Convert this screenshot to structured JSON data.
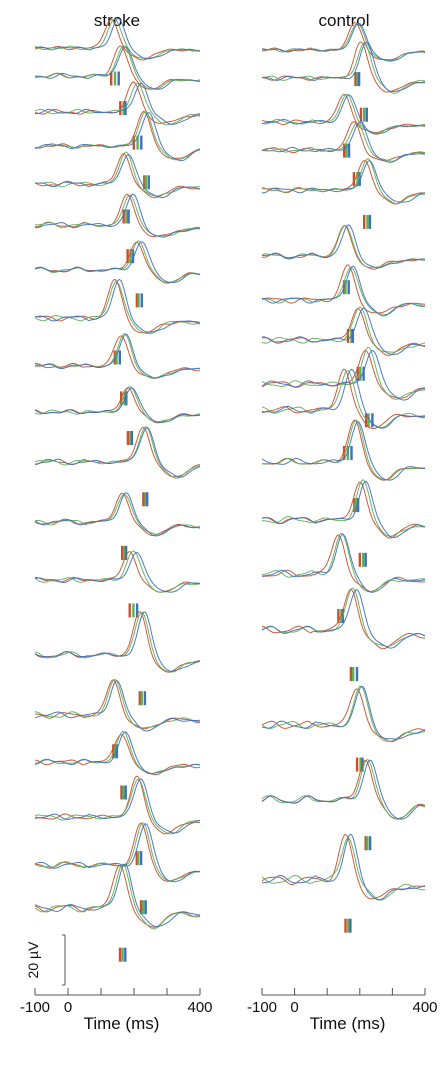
{
  "chart_data": {
    "type": "line",
    "panels": [
      {
        "title": "stroke"
      },
      {
        "title": "control"
      }
    ],
    "xlabel": "Time (ms)",
    "xlim": [
      -100,
      400
    ],
    "xticks": [
      -100,
      0,
      400
    ],
    "xticks_minor": [
      100,
      200,
      300
    ],
    "xtick_labels": [
      "-100",
      "0",
      "400"
    ],
    "scale_bar": {
      "label": "20 µV",
      "value": 20
    },
    "series_colors": {
      "red": "#c8502a",
      "green": "#5fb05a",
      "blue": "#3f6fc0"
    }
  }
}
